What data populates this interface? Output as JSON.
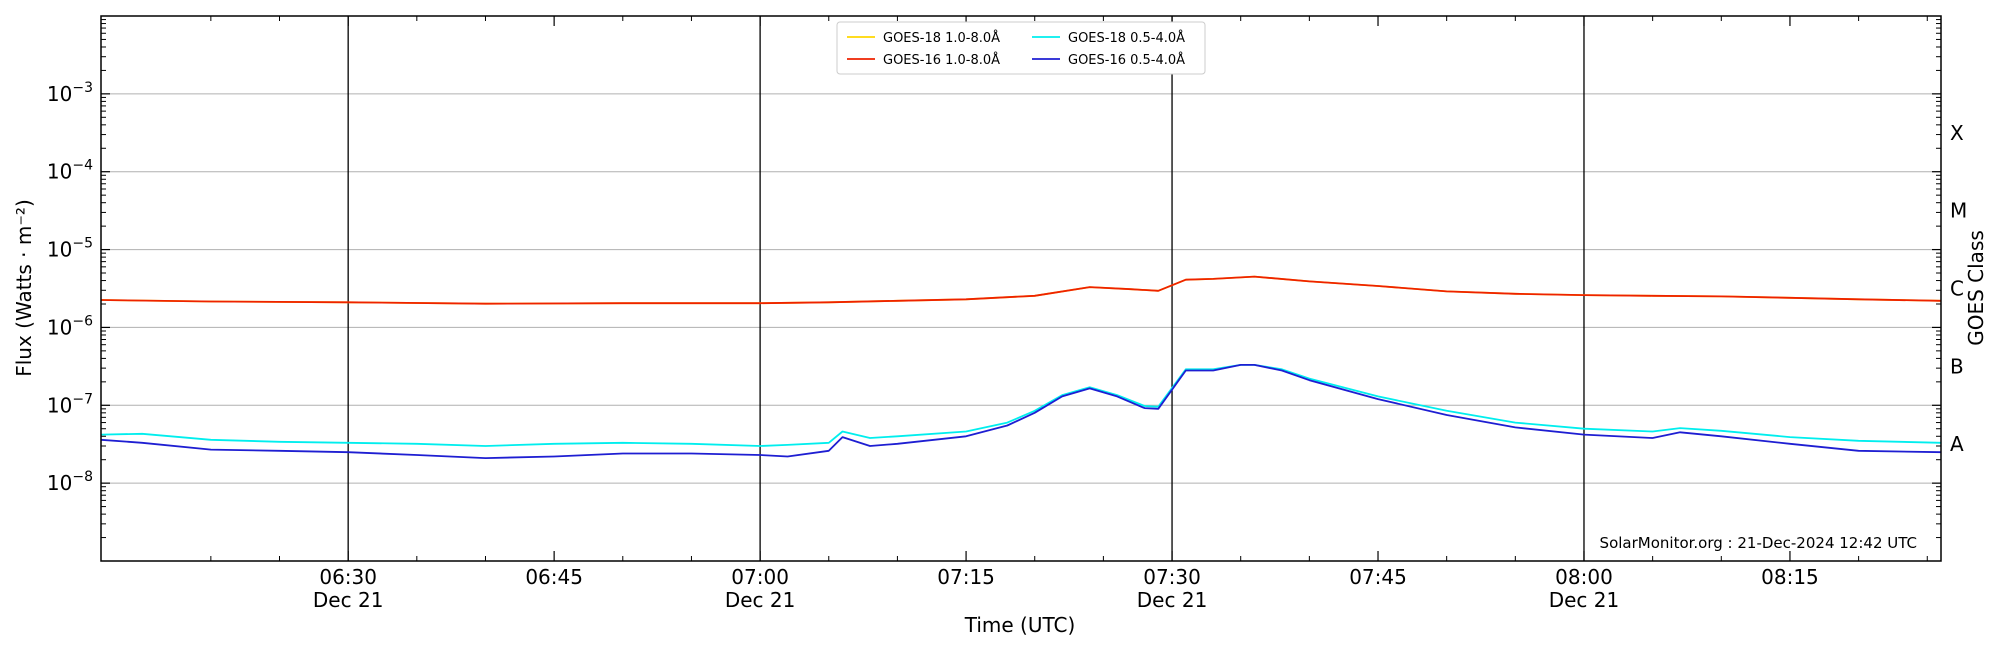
{
  "chart_data": {
    "type": "line",
    "title": "",
    "xlabel": "Time (UTC)",
    "ylabel": "Flux (Watts · m⁻²)",
    "y2label": "GOES Class",
    "yscale": "log",
    "ylim": [
      1e-09,
      0.01
    ],
    "xlim": [
      "06:12",
      "08:26"
    ],
    "grid": "horizontal at decades",
    "legend_position": "top-center",
    "legend_ncol": 2,
    "watermark": "SolarMonitor.org : 21-Dec-2024 12:42 UTC",
    "y_ticks": [
      {
        "value": 1e-08,
        "base": "10",
        "exp": "−8"
      },
      {
        "value": 1e-07,
        "base": "10",
        "exp": "−7"
      },
      {
        "value": 1e-06,
        "base": "10",
        "exp": "−6"
      },
      {
        "value": 1e-05,
        "base": "10",
        "exp": "−5"
      },
      {
        "value": 0.0001,
        "base": "10",
        "exp": "−4"
      },
      {
        "value": 0.001,
        "base": "10",
        "exp": "−3"
      }
    ],
    "x_ticks": [
      {
        "time": "06:30",
        "label": "06:30",
        "sublabel": "Dec 21"
      },
      {
        "time": "06:45",
        "label": "06:45",
        "sublabel": ""
      },
      {
        "time": "07:00",
        "label": "07:00",
        "sublabel": "Dec 21"
      },
      {
        "time": "07:15",
        "label": "07:15",
        "sublabel": ""
      },
      {
        "time": "07:30",
        "label": "07:30",
        "sublabel": "Dec 21"
      },
      {
        "time": "07:45",
        "label": "07:45",
        "sublabel": ""
      },
      {
        "time": "08:00",
        "label": "08:00",
        "sublabel": "Dec 21"
      },
      {
        "time": "08:15",
        "label": "08:15",
        "sublabel": ""
      }
    ],
    "vertical_lines": [
      "06:30",
      "07:00",
      "07:30",
      "08:00"
    ],
    "goes_classes": [
      {
        "label": "A",
        "value": 3.16e-08
      },
      {
        "label": "B",
        "value": 3.16e-07
      },
      {
        "label": "C",
        "value": 3.16e-06
      },
      {
        "label": "M",
        "value": 3.16e-05
      },
      {
        "label": "X",
        "value": 0.000316
      }
    ],
    "series": [
      {
        "name": "GOES-18 1.0-8.0Å",
        "color": "#ffd700",
        "x": [
          "06:12",
          "06:20",
          "06:30",
          "06:40",
          "06:50",
          "07:00",
          "07:05",
          "07:10",
          "07:15",
          "07:20",
          "07:24",
          "07:27",
          "07:29",
          "07:31",
          "07:33",
          "07:36",
          "07:40",
          "07:45",
          "07:50",
          "07:55",
          "08:00",
          "08:05",
          "08:10",
          "08:15",
          "08:20",
          "08:26"
        ],
        "y": [
          2.25e-06,
          2.15e-06,
          2.1e-06,
          2.02e-06,
          2.05e-06,
          2.05e-06,
          2.1e-06,
          2.2e-06,
          2.3e-06,
          2.55e-06,
          3.3e-06,
          3.1e-06,
          2.95e-06,
          4.1e-06,
          4.2e-06,
          4.5e-06,
          3.9e-06,
          3.4e-06,
          2.9e-06,
          2.7e-06,
          2.6e-06,
          2.55e-06,
          2.5e-06,
          2.4e-06,
          2.3e-06,
          2.2e-06
        ]
      },
      {
        "name": "GOES-16 1.0-8.0Å",
        "color": "#ee2200",
        "x": [
          "06:12",
          "06:20",
          "06:30",
          "06:40",
          "06:50",
          "07:00",
          "07:05",
          "07:10",
          "07:15",
          "07:20",
          "07:24",
          "07:27",
          "07:29",
          "07:31",
          "07:33",
          "07:36",
          "07:40",
          "07:45",
          "07:50",
          "07:55",
          "08:00",
          "08:05",
          "08:10",
          "08:15",
          "08:20",
          "08:26"
        ],
        "y": [
          2.25e-06,
          2.15e-06,
          2.1e-06,
          2.02e-06,
          2.05e-06,
          2.05e-06,
          2.1e-06,
          2.2e-06,
          2.3e-06,
          2.55e-06,
          3.3e-06,
          3.1e-06,
          2.95e-06,
          4.1e-06,
          4.2e-06,
          4.5e-06,
          3.9e-06,
          3.4e-06,
          2.9e-06,
          2.7e-06,
          2.6e-06,
          2.55e-06,
          2.5e-06,
          2.4e-06,
          2.3e-06,
          2.2e-06
        ]
      },
      {
        "name": "GOES-18 0.5-4.0Å",
        "color": "#00eeee",
        "x": [
          "06:12",
          "06:15",
          "06:20",
          "06:25",
          "06:30",
          "06:35",
          "06:40",
          "06:45",
          "06:50",
          "06:55",
          "07:00",
          "07:02",
          "07:05",
          "07:06",
          "07:08",
          "07:10",
          "07:15",
          "07:18",
          "07:20",
          "07:22",
          "07:24",
          "07:26",
          "07:28",
          "07:29",
          "07:31",
          "07:33",
          "07:35",
          "07:36",
          "07:38",
          "07:40",
          "07:45",
          "07:50",
          "07:55",
          "08:00",
          "08:05",
          "08:07",
          "08:10",
          "08:15",
          "08:20",
          "08:26"
        ],
        "y": [
          4.2e-08,
          4.3e-08,
          3.6e-08,
          3.4e-08,
          3.3e-08,
          3.2e-08,
          3e-08,
          3.2e-08,
          3.3e-08,
          3.2e-08,
          3e-08,
          3.1e-08,
          3.3e-08,
          4.6e-08,
          3.8e-08,
          4e-08,
          4.6e-08,
          6e-08,
          8.5e-08,
          1.35e-07,
          1.7e-07,
          1.35e-07,
          9.8e-08,
          9.6e-08,
          2.9e-07,
          2.9e-07,
          3.3e-07,
          3.3e-07,
          2.9e-07,
          2.2e-07,
          1.3e-07,
          8.5e-08,
          6e-08,
          5e-08,
          4.6e-08,
          5.1e-08,
          4.7e-08,
          3.9e-08,
          3.5e-08,
          3.3e-08
        ]
      },
      {
        "name": "GOES-16 0.5-4.0Å",
        "color": "#1e1ed2",
        "x": [
          "06:12",
          "06:15",
          "06:20",
          "06:25",
          "06:30",
          "06:35",
          "06:40",
          "06:45",
          "06:50",
          "06:55",
          "07:00",
          "07:02",
          "07:05",
          "07:06",
          "07:08",
          "07:10",
          "07:15",
          "07:18",
          "07:20",
          "07:22",
          "07:24",
          "07:26",
          "07:28",
          "07:29",
          "07:31",
          "07:33",
          "07:35",
          "07:36",
          "07:38",
          "07:40",
          "07:45",
          "07:50",
          "07:55",
          "08:00",
          "08:05",
          "08:07",
          "08:10",
          "08:15",
          "08:20",
          "08:26"
        ],
        "y": [
          3.6e-08,
          3.3e-08,
          2.7e-08,
          2.6e-08,
          2.5e-08,
          2.3e-08,
          2.1e-08,
          2.2e-08,
          2.4e-08,
          2.4e-08,
          2.3e-08,
          2.2e-08,
          2.6e-08,
          3.9e-08,
          3e-08,
          3.2e-08,
          4e-08,
          5.5e-08,
          8e-08,
          1.3e-07,
          1.65e-07,
          1.3e-07,
          9.2e-08,
          9e-08,
          2.8e-07,
          2.8e-07,
          3.3e-07,
          3.3e-07,
          2.8e-07,
          2.1e-07,
          1.2e-07,
          7.5e-08,
          5.2e-08,
          4.2e-08,
          3.8e-08,
          4.5e-08,
          4e-08,
          3.2e-08,
          2.6e-08,
          2.5e-08
        ]
      }
    ]
  }
}
